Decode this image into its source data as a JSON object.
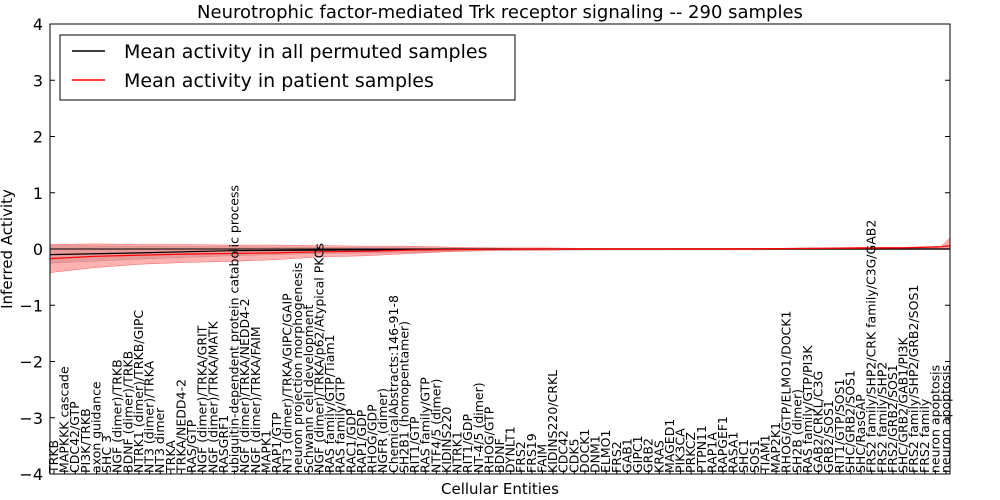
{
  "chart_data": {
    "type": "line",
    "title": "Neurotrophic factor-mediated Trk receptor signaling -- 290 samples",
    "xlabel": "Cellular Entities",
    "ylabel": "Inferred Activity",
    "ylim": [
      -4,
      4
    ],
    "yticks": [
      "4",
      "3",
      "2",
      "1",
      "0",
      "−1",
      "−2",
      "−3",
      "−4"
    ],
    "legend_position": "top-left",
    "series": [
      {
        "name": "Mean activity in all permuted samples",
        "color": "#000000",
        "points": [
          [
            0,
            -0.1
          ],
          [
            10,
            -0.07
          ],
          [
            20,
            -0.03
          ],
          [
            30,
            -0.02
          ],
          [
            40,
            -0.01
          ],
          [
            50,
            0
          ],
          [
            100,
            0
          ]
        ]
      },
      {
        "name": "Mean activity in patient samples",
        "color": "#ff0000",
        "points": [
          [
            0,
            -0.17
          ],
          [
            5,
            -0.13
          ],
          [
            10,
            -0.11
          ],
          [
            15,
            -0.09
          ],
          [
            20,
            -0.08
          ],
          [
            25,
            -0.07
          ],
          [
            30,
            -0.05
          ],
          [
            35,
            -0.04
          ],
          [
            40,
            -0.02
          ],
          [
            45,
            -0.01
          ],
          [
            50,
            -0.005
          ],
          [
            55,
            0
          ],
          [
            75,
            0
          ],
          [
            85,
            0.01
          ],
          [
            95,
            0.02
          ],
          [
            99,
            0.04
          ],
          [
            100,
            0.06
          ]
        ]
      }
    ],
    "patient_band": {
      "upper": [
        [
          0,
          0.08
        ],
        [
          5,
          0.09
        ],
        [
          10,
          0.08
        ],
        [
          15,
          0.08
        ],
        [
          20,
          0.07
        ],
        [
          25,
          0.07
        ],
        [
          30,
          0.06
        ],
        [
          35,
          0.05
        ],
        [
          40,
          0.05
        ],
        [
          45,
          0.03
        ],
        [
          50,
          0.02
        ],
        [
          55,
          0.02
        ],
        [
          60,
          0.01
        ],
        [
          70,
          0.01
        ],
        [
          80,
          0.01
        ],
        [
          85,
          0.02
        ],
        [
          90,
          0.03
        ],
        [
          95,
          0.03
        ],
        [
          99,
          0.05
        ],
        [
          100,
          0.2
        ]
      ],
      "lower": [
        [
          0,
          -0.42
        ],
        [
          5,
          -0.33
        ],
        [
          10,
          -0.27
        ],
        [
          15,
          -0.24
        ],
        [
          20,
          -0.22
        ],
        [
          25,
          -0.19
        ],
        [
          30,
          -0.14
        ],
        [
          35,
          -0.12
        ],
        [
          40,
          -0.08
        ],
        [
          45,
          -0.04
        ],
        [
          50,
          -0.02
        ],
        [
          55,
          -0.02
        ],
        [
          60,
          -0.01
        ],
        [
          70,
          -0.01
        ],
        [
          80,
          -0.01
        ],
        [
          85,
          0
        ],
        [
          90,
          0
        ],
        [
          95,
          0
        ],
        [
          99,
          0.01
        ],
        [
          100,
          0.02
        ]
      ]
    },
    "permuted_band": {
      "upper": [
        [
          0,
          0.06
        ],
        [
          10,
          0.05
        ],
        [
          20,
          0.04
        ],
        [
          30,
          0.03
        ],
        [
          40,
          0.02
        ],
        [
          50,
          0.01
        ],
        [
          100,
          0.01
        ]
      ],
      "lower": [
        [
          0,
          -0.25
        ],
        [
          10,
          -0.18
        ],
        [
          20,
          -0.12
        ],
        [
          30,
          -0.08
        ],
        [
          40,
          -0.06
        ],
        [
          50,
          -0.03
        ],
        [
          60,
          -0.02
        ],
        [
          100,
          -0.01
        ]
      ]
    },
    "entities": [
      "TRKB",
      "MAPKKK cascade",
      "CDC42/GTP",
      "PI3K/TRKB",
      "axon guidance",
      "SHC 3",
      "NGF (dimer)/TRKB",
      "BDNF (dimer)/TRKB",
      "NTRK1 (dimer)/TRKB/GIPC",
      "NT3 (dimer)/TRKA",
      "NT3 dimer",
      "TRKA",
      "TRKA/NEDD4-2",
      "RAS/GTP",
      "NGF (dimer)/TRKA/GRIT",
      "NGF (dimer)/TRKA/MATK",
      "RASGRF1",
      "ubiquitin-dependent protein catabolic process",
      "NGF (dimer)/TRKA/NEDD4-2",
      "NGF (dimer)/TRKA/FAIM",
      "MAPK1",
      "RAP1/GTP",
      "NT3 (dimer)/TRKA/GIPC/GAIP",
      "neuron projection morphogenesis",
      "Schwann cell development",
      "NGF (dimer)/TRKA/p62/Atypical PKCs",
      "RAS family/GTP/Tiam1",
      "RAS family/GTP",
      "RAC1/GDP",
      "RAP1/GDP",
      "RHOG/GDP",
      "NGFR (dimer)",
      "ChemicalAbstracts:146-91-8",
      "SH2B1 (homopentamer)",
      "RIT1/GTP",
      "RAS family/GTP",
      "NTF4/5 (dimer)",
      "KIDINS220",
      "NTRK1",
      "RIT1/GDP",
      "NT-4/5 (dimer)",
      "RHOG/GTP",
      "BDNF",
      "DYNLT1",
      "FRS2",
      "FRS19",
      "FAIM",
      "KIDINS220/CRKL",
      "CDC42",
      "CDK5",
      "DOCK1",
      "DNM1",
      "ELMO1",
      "FRS2",
      "GAB1",
      "GIPC1",
      "GRB2",
      "KRAS",
      "MAGED1",
      "PIK3CA",
      "PRKCZ",
      "PTPN11",
      "RAP1A",
      "RAPGEF1",
      "RASA1",
      "SHC1",
      "SOS1",
      "TIAM1",
      "MAP2K1",
      "RHOG/GTP/ELMO1/DOCK1",
      "SH2B (dimer)",
      "RAS family/GTP/PI3K",
      "GAB2/CRKL/C3G",
      "GRB2/SOS1",
      "RIT1/GTP/SOS1",
      "SHC/GRB2/SOS1",
      "SHC/RasGAP",
      "FRS2 family/SHP2/CRK family/C3G/GAB2",
      "FRS2 family/SHP2",
      "FRS2/GRB2/SOS1",
      "SHC/GRB2/GAB1/PI3K",
      "FRS2 family/SHP2/GRB2/SOS1",
      "FRS2 family",
      "neuron apoptosis",
      "neuron apoptosis"
    ]
  }
}
